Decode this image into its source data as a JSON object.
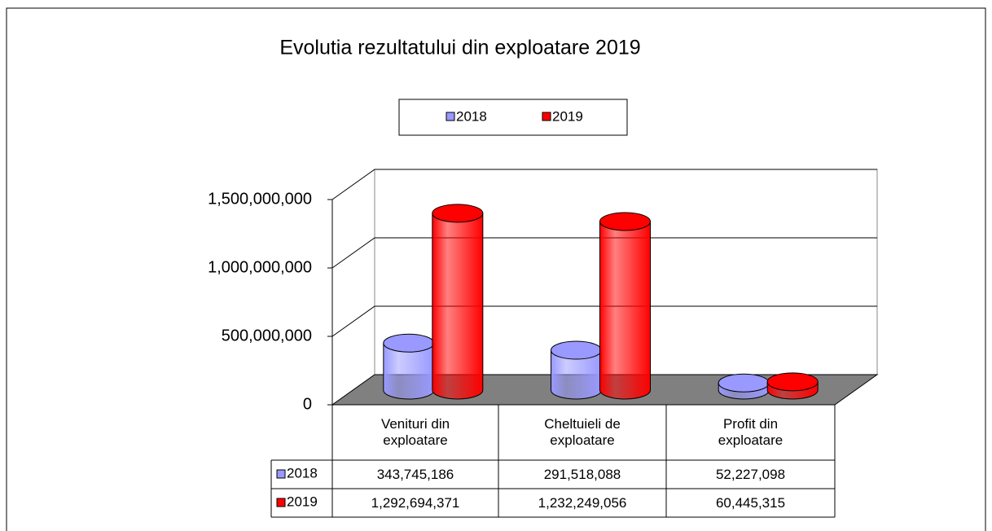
{
  "chart_data": {
    "type": "bar",
    "title": "Evolutia rezultatului din exploatare 2019",
    "categories": [
      "Venituri din exploatare",
      "Cheltuieli de exploatare",
      "Profit din exploatare"
    ],
    "series": [
      {
        "name": "2018",
        "color": "#9999ff",
        "values": [
          343745186,
          291518088,
          52227098
        ],
        "value_labels": [
          "343,745,186",
          "291,518,088",
          "52,227,098"
        ]
      },
      {
        "name": "2019",
        "color": "#ff0000",
        "values": [
          1292694371,
          1232249056,
          60445315
        ],
        "value_labels": [
          "1,292,694,371",
          "1,232,249,056",
          "60,445,315"
        ]
      }
    ],
    "ylim": [
      0,
      1500000000
    ],
    "yticks": [
      0,
      {
        "value": 500000000,
        "label": "500,000,000"
      },
      {
        "value": 1000000000,
        "label": "1,000,000,000"
      },
      {
        "value": 1500000000,
        "label": "1,500,000,000"
      }
    ],
    "grid": true,
    "legend": "top"
  }
}
